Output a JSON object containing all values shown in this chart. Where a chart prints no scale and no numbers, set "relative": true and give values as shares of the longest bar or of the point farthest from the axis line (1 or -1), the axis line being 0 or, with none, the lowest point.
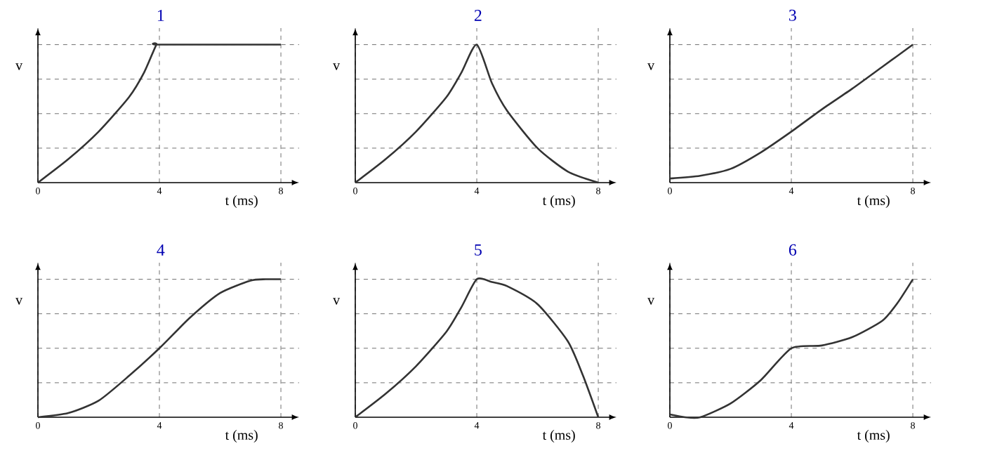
{
  "chart_data": [
    {
      "type": "line",
      "title": "1",
      "xlabel": "t (ms)",
      "ylabel": "v",
      "relative": true,
      "xlim": [
        0,
        8.6
      ],
      "xticks": [
        0,
        4,
        8
      ],
      "grid": true,
      "color": "#333333",
      "x": [
        0,
        1,
        2,
        3,
        3.5,
        3.9,
        4,
        8
      ],
      "values": [
        0,
        0.17,
        0.37,
        0.62,
        0.8,
        1,
        1,
        1
      ]
    },
    {
      "type": "line",
      "title": "2",
      "xlabel": "t (ms)",
      "ylabel": "v",
      "relative": true,
      "xlim": [
        0,
        8.6
      ],
      "xticks": [
        0,
        4,
        8
      ],
      "grid": true,
      "color": "#333333",
      "x": [
        0,
        1,
        2,
        3,
        3.5,
        4,
        4.5,
        5,
        6,
        7,
        8
      ],
      "values": [
        0,
        0.17,
        0.37,
        0.62,
        0.8,
        1,
        0.72,
        0.52,
        0.25,
        0.08,
        0
      ]
    },
    {
      "type": "line",
      "title": "3",
      "xlabel": "t (ms)",
      "ylabel": "v",
      "relative": true,
      "xlim": [
        0,
        8.6
      ],
      "xticks": [
        0,
        4,
        8
      ],
      "grid": true,
      "color": "#333333",
      "x": [
        0,
        1,
        2,
        3,
        4,
        5,
        6,
        7,
        8
      ],
      "values": [
        0.03,
        0.05,
        0.1,
        0.22,
        0.37,
        0.53,
        0.68,
        0.84,
        1
      ]
    },
    {
      "type": "line",
      "title": "4",
      "xlabel": "t (ms)",
      "ylabel": "v",
      "relative": true,
      "xlim": [
        0,
        8.6
      ],
      "xticks": [
        0,
        4,
        8
      ],
      "grid": true,
      "color": "#333333",
      "x": [
        0,
        1,
        2,
        3,
        4,
        5,
        6,
        7,
        7.5,
        8
      ],
      "values": [
        0,
        0.03,
        0.12,
        0.3,
        0.5,
        0.72,
        0.9,
        0.99,
        1,
        1
      ]
    },
    {
      "type": "line",
      "title": "5",
      "xlabel": "t (ms)",
      "ylabel": "v",
      "relative": true,
      "xlim": [
        0,
        8.6
      ],
      "xticks": [
        0,
        4,
        8
      ],
      "grid": true,
      "color": "#333333",
      "x": [
        0,
        1,
        2,
        3,
        3.5,
        4,
        4.5,
        5,
        6,
        7,
        7.5,
        8
      ],
      "values": [
        0,
        0.17,
        0.37,
        0.62,
        0.8,
        1,
        0.98,
        0.95,
        0.82,
        0.55,
        0.3,
        0
      ]
    },
    {
      "type": "line",
      "title": "6",
      "xlabel": "t (ms)",
      "ylabel": "v",
      "relative": true,
      "xlim": [
        0,
        8.6
      ],
      "xticks": [
        0,
        4,
        8
      ],
      "grid": true,
      "color": "#333333",
      "x": [
        0,
        0.5,
        1,
        2,
        3,
        4,
        5,
        6,
        7,
        7.5,
        8
      ],
      "values": [
        0.02,
        0,
        0,
        0.1,
        0.27,
        0.5,
        0.52,
        0.58,
        0.7,
        0.83,
        1
      ]
    }
  ]
}
